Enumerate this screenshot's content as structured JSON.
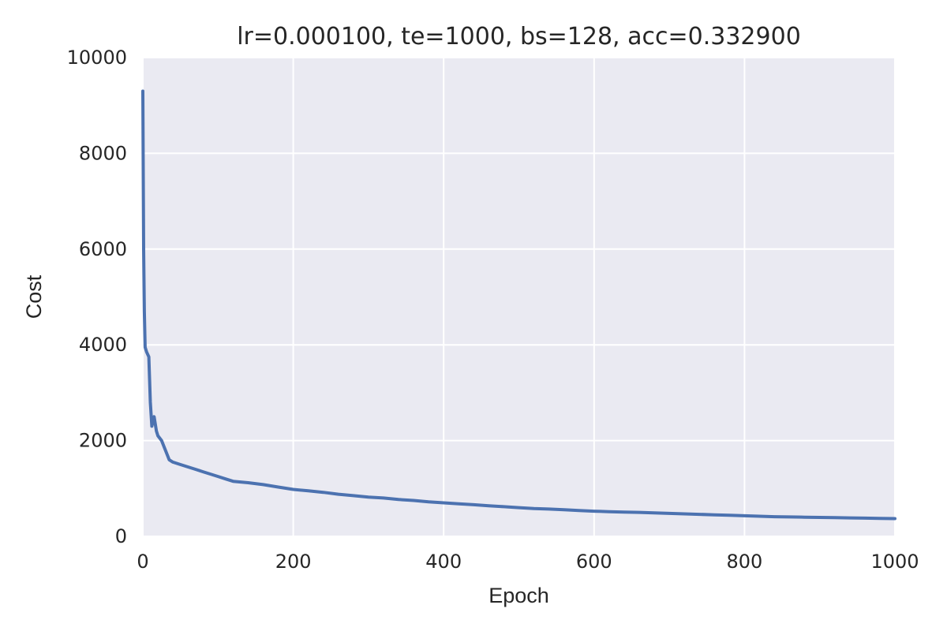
{
  "chart_data": {
    "type": "line",
    "title": "lr=0.000100, te=1000, bs=128, acc=0.332900",
    "xlabel": "Epoch",
    "ylabel": "Cost",
    "xlim": [
      0,
      1000
    ],
    "ylim": [
      0,
      10000
    ],
    "x_ticks": [
      "0",
      "200",
      "400",
      "600",
      "800",
      "1000"
    ],
    "y_ticks": [
      "0",
      "2000",
      "4000",
      "6000",
      "8000",
      "10000"
    ],
    "grid": true,
    "background_color": "#EAEAF2",
    "grid_color": "#FFFFFF",
    "series": [
      {
        "color": "#4C72B0",
        "x": [
          0,
          1,
          2,
          3,
          5,
          8,
          10,
          12,
          15,
          18,
          20,
          25,
          30,
          35,
          40,
          50,
          60,
          70,
          80,
          90,
          100,
          110,
          120,
          140,
          160,
          180,
          200,
          220,
          240,
          260,
          280,
          300,
          320,
          340,
          360,
          380,
          400,
          420,
          440,
          460,
          480,
          500,
          520,
          540,
          560,
          580,
          600,
          620,
          640,
          660,
          680,
          700,
          720,
          740,
          760,
          780,
          800,
          820,
          840,
          860,
          880,
          900,
          920,
          940,
          960,
          980,
          1000
        ],
        "values": [
          9300,
          6000,
          4700,
          3950,
          3850,
          3750,
          2800,
          2300,
          2500,
          2200,
          2100,
          2000,
          1800,
          1600,
          1550,
          1500,
          1450,
          1400,
          1350,
          1300,
          1250,
          1200,
          1150,
          1120,
          1080,
          1030,
          980,
          950,
          920,
          880,
          850,
          820,
          800,
          770,
          750,
          720,
          700,
          680,
          660,
          640,
          620,
          600,
          580,
          570,
          555,
          540,
          525,
          515,
          505,
          500,
          490,
          480,
          470,
          460,
          450,
          440,
          430,
          420,
          410,
          405,
          400,
          395,
          390,
          385,
          380,
          375,
          370
        ]
      }
    ]
  }
}
